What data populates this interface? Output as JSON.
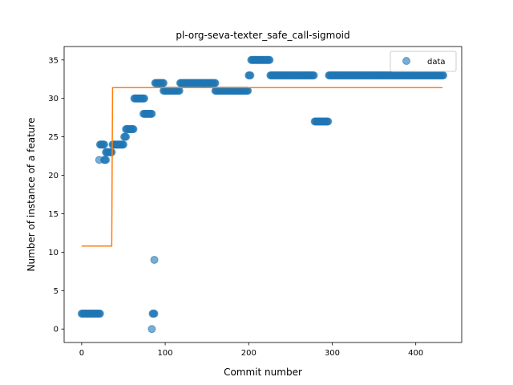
{
  "chart_data": {
    "type": "scatter",
    "title": "pl-org-seva-texter_safe_call-sigmoid",
    "xlabel": "Commit number",
    "ylabel": "Number of instance of a feature",
    "xlim": [
      -21,
      455
    ],
    "ylim": [
      -1.75,
      36.75
    ],
    "xticks": [
      0,
      100,
      200,
      300,
      400
    ],
    "yticks": [
      0,
      5,
      10,
      15,
      20,
      25,
      30,
      35
    ],
    "grid": false,
    "legend": {
      "position": "upper right",
      "entries": [
        "data"
      ]
    },
    "colors": {
      "data": "#1f77b4",
      "fit": "#ff7f0e"
    },
    "series": [
      {
        "name": "data",
        "kind": "scatter",
        "runs": [
          {
            "x0": 0,
            "x1": 22,
            "y": 2
          },
          {
            "x0": 21,
            "x1": 21,
            "y": 22
          },
          {
            "x0": 22,
            "x1": 27,
            "y": 24
          },
          {
            "x0": 27,
            "x1": 29,
            "y": 22
          },
          {
            "x0": 29,
            "x1": 36,
            "y": 23
          },
          {
            "x0": 37,
            "x1": 50,
            "y": 24
          },
          {
            "x0": 51,
            "x1": 53,
            "y": 25
          },
          {
            "x0": 53,
            "x1": 62,
            "y": 26
          },
          {
            "x0": 63,
            "x1": 75,
            "y": 30
          },
          {
            "x0": 74,
            "x1": 84,
            "y": 28
          },
          {
            "x0": 84,
            "x1": 84,
            "y": 0
          },
          {
            "x0": 85,
            "x1": 87,
            "y": 2
          },
          {
            "x0": 87,
            "x1": 87,
            "y": 9
          },
          {
            "x0": 88,
            "x1": 98,
            "y": 32
          },
          {
            "x0": 98,
            "x1": 117,
            "y": 31
          },
          {
            "x0": 118,
            "x1": 160,
            "y": 32
          },
          {
            "x0": 160,
            "x1": 199,
            "y": 31
          },
          {
            "x0": 200,
            "x1": 202,
            "y": 33
          },
          {
            "x0": 203,
            "x1": 225,
            "y": 35
          },
          {
            "x0": 226,
            "x1": 278,
            "y": 33
          },
          {
            "x0": 279,
            "x1": 295,
            "y": 27
          },
          {
            "x0": 296,
            "x1": 433,
            "y": 33
          }
        ]
      },
      {
        "name": "",
        "kind": "line",
        "x": [
          0,
          36,
          37,
          432
        ],
        "y": [
          10.8,
          10.8,
          31.4,
          31.4
        ]
      }
    ]
  }
}
